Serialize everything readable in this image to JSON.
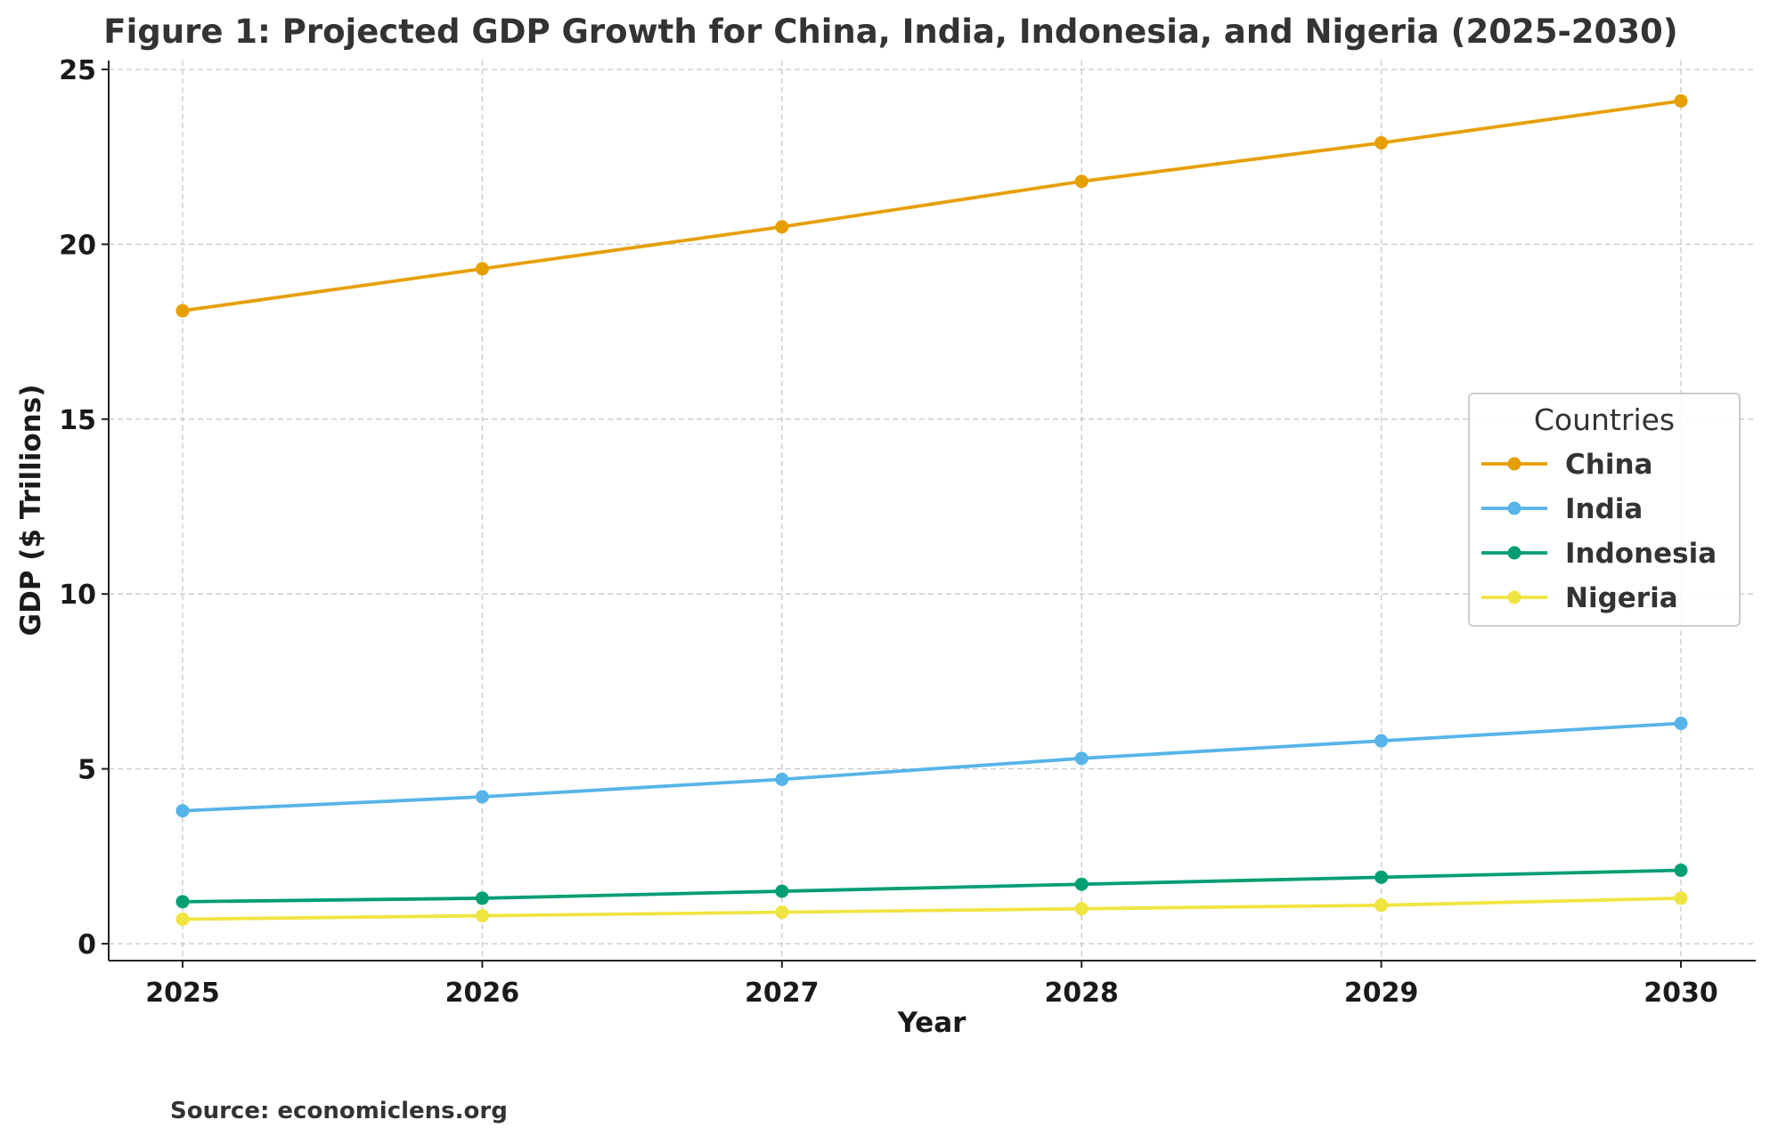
{
  "chart_data": {
    "type": "line",
    "title": "Figure 1: Projected GDP Growth for China, India, Indonesia, and Nigeria (2025-2030)",
    "xlabel": "Year",
    "ylabel": "GDP ($ Trillions)",
    "x": [
      2025,
      2026,
      2027,
      2028,
      2029,
      2030
    ],
    "xticks": [
      "2025",
      "2026",
      "2027",
      "2028",
      "2029",
      "2030"
    ],
    "yticks": [
      "0",
      "5",
      "10",
      "15",
      "20",
      "25"
    ],
    "ylim": [
      -0.5,
      25.3
    ],
    "grid": true,
    "legend": {
      "title": "Countries",
      "placement": "center-right"
    },
    "series": [
      {
        "name": "China",
        "color": "#E69F00",
        "values": [
          18.1,
          19.3,
          20.5,
          21.8,
          22.9,
          24.1
        ]
      },
      {
        "name": "India",
        "color": "#56B4E9",
        "values": [
          3.8,
          4.2,
          4.7,
          5.3,
          5.8,
          6.3
        ]
      },
      {
        "name": "Indonesia",
        "color": "#009E73",
        "values": [
          1.2,
          1.3,
          1.5,
          1.7,
          1.9,
          2.1
        ]
      },
      {
        "name": "Nigeria",
        "color": "#F0E442",
        "values": [
          0.7,
          0.8,
          0.9,
          1.0,
          1.1,
          1.3
        ]
      }
    ],
    "source": "Source: economiclens.org"
  }
}
